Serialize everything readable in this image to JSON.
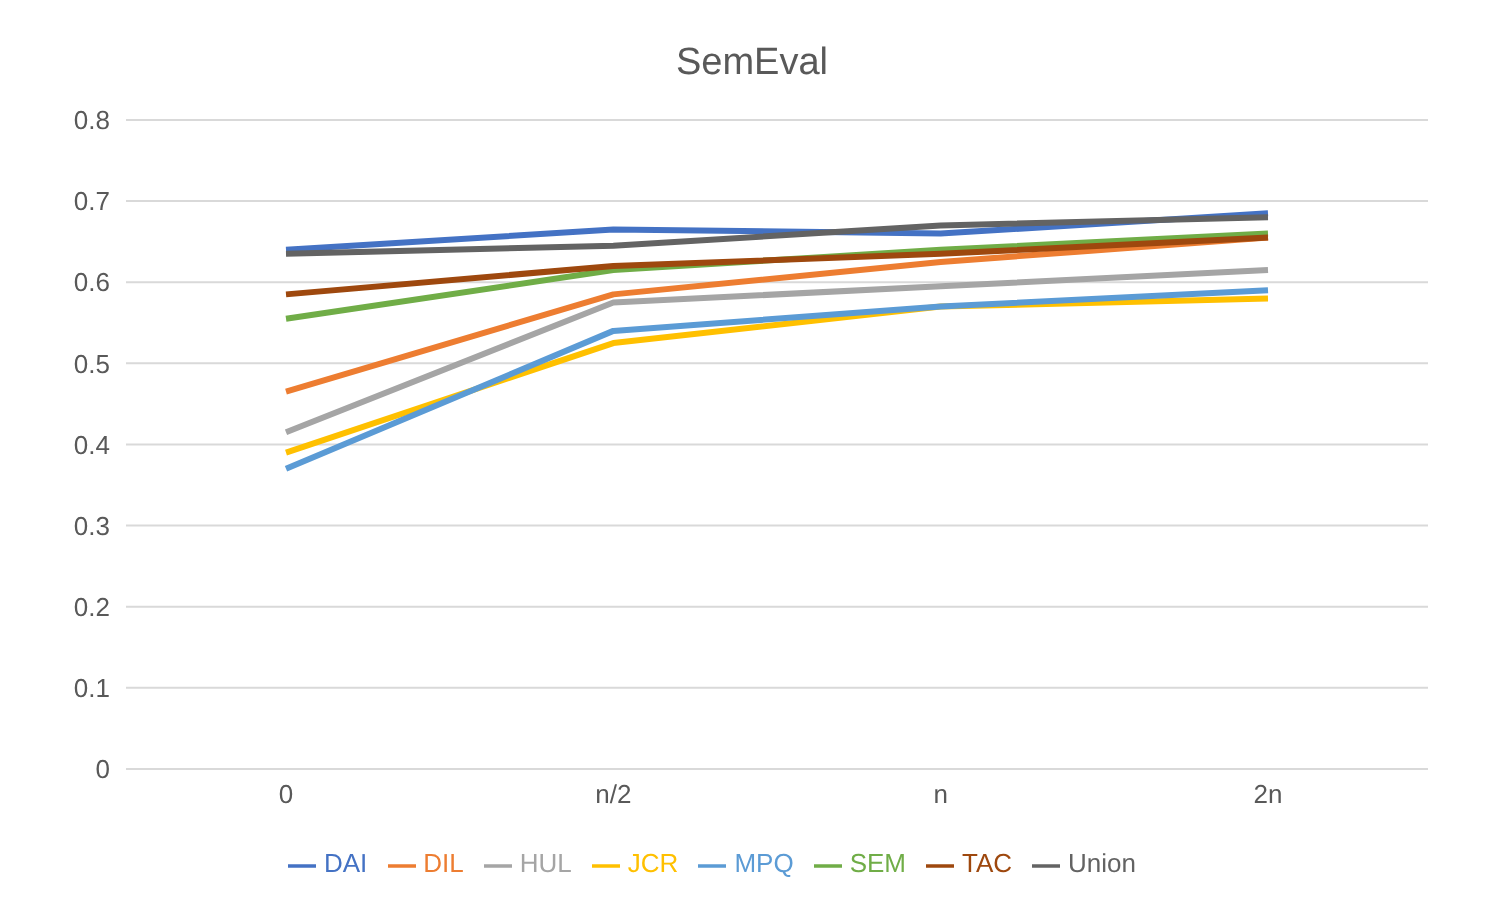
{
  "chart_data": {
    "type": "line",
    "title": "SemEval",
    "categories": [
      "0",
      "n/2",
      "n",
      "2n"
    ],
    "series": [
      {
        "name": "DAI",
        "color": "#4472c4",
        "values": [
          0.64,
          0.665,
          0.66,
          0.685
        ]
      },
      {
        "name": "DIL",
        "color": "#ed7d31",
        "values": [
          0.465,
          0.585,
          0.625,
          0.655
        ]
      },
      {
        "name": "HUL",
        "color": "#a5a5a5",
        "values": [
          0.415,
          0.575,
          0.595,
          0.615
        ]
      },
      {
        "name": "JCR",
        "color": "#ffc000",
        "values": [
          0.39,
          0.525,
          0.57,
          0.58
        ]
      },
      {
        "name": "MPQ",
        "color": "#5b9bd5",
        "values": [
          0.37,
          0.54,
          0.57,
          0.59
        ]
      },
      {
        "name": "SEM",
        "color": "#70ad47",
        "values": [
          0.555,
          0.615,
          0.64,
          0.66
        ]
      },
      {
        "name": "TAC",
        "color": "#9e480e",
        "values": [
          0.585,
          0.62,
          0.635,
          0.655
        ]
      },
      {
        "name": "Union",
        "color": "#636363",
        "values": [
          0.635,
          0.645,
          0.67,
          0.68
        ]
      }
    ],
    "ylim": [
      0,
      0.8
    ],
    "yticks": [
      0,
      0.1,
      0.2,
      0.3,
      0.4,
      0.5,
      0.6,
      0.7,
      0.8
    ],
    "grid": "y",
    "legend": "bottom",
    "marker": "none",
    "line_style": "solid"
  }
}
